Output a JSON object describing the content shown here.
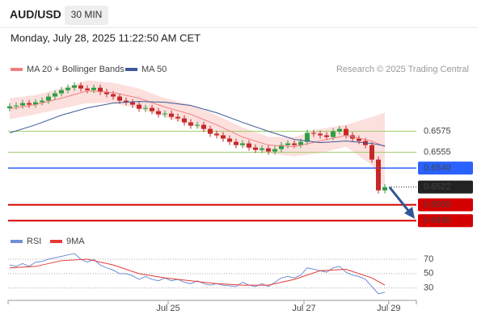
{
  "header": {
    "symbol": "AUD/USD",
    "interval": "30 MIN",
    "timestamp": "Monday, July 28, 2025 11:22:50 AM CET"
  },
  "chart_data": [
    {
      "type": "candlestick",
      "attribution": "Research © 2025 Trading Central",
      "xlim": [
        -0.25,
        63.125
      ],
      "ylim": [
        0.6484,
        0.6627
      ],
      "up_color": "#2e9e44",
      "down_color": "#c62828",
      "open": [
        0.6597,
        0.65988,
        0.65996,
        0.66019,
        0.66004,
        0.66027,
        0.66042,
        0.66081,
        0.66112,
        0.66142,
        0.66165,
        0.66188,
        0.66158,
        0.66142,
        0.66165,
        0.66127,
        0.66104,
        0.66081,
        0.66042,
        0.66027,
        0.66004,
        0.65965,
        0.65973,
        0.65942,
        0.65912,
        0.65919,
        0.65888,
        0.65873,
        0.65835,
        0.65804,
        0.65812,
        0.65773,
        0.65727,
        0.65712,
        0.65681,
        0.6565,
        0.65619,
        0.65635,
        0.65596,
        0.65573,
        0.65588,
        0.65558,
        0.65581,
        0.65619,
        0.65635,
        0.65619,
        0.6565,
        0.65735,
        0.65727,
        0.65712,
        0.65696,
        0.6575,
        0.65773,
        0.65712,
        0.65681,
        0.65658,
        0.65619,
        0.65481,
        0.65188
      ],
      "high": [
        0.66018,
        0.66026,
        0.66049,
        0.66049,
        0.66057,
        0.66072,
        0.66111,
        0.66142,
        0.66172,
        0.66195,
        0.66218,
        0.66218,
        0.66188,
        0.66195,
        0.66195,
        0.66157,
        0.66134,
        0.66111,
        0.66072,
        0.66057,
        0.66034,
        0.66003,
        0.66003,
        0.65972,
        0.65949,
        0.65949,
        0.65918,
        0.65903,
        0.65865,
        0.65842,
        0.65842,
        0.65803,
        0.65757,
        0.65742,
        0.65711,
        0.6568,
        0.65665,
        0.65665,
        0.65626,
        0.65618,
        0.65618,
        0.65611,
        0.65649,
        0.65665,
        0.65665,
        0.6568,
        0.65765,
        0.65765,
        0.65757,
        0.65742,
        0.6578,
        0.65803,
        0.65803,
        0.65742,
        0.65711,
        0.65688,
        0.65649,
        0.65511,
        0.65249
      ],
      "low": [
        0.6594,
        0.65958,
        0.65966,
        0.65974,
        0.65974,
        0.65997,
        0.66012,
        0.66051,
        0.66082,
        0.66112,
        0.66135,
        0.66128,
        0.66112,
        0.66112,
        0.66097,
        0.66074,
        0.66051,
        0.66012,
        0.65997,
        0.65974,
        0.65935,
        0.65935,
        0.65912,
        0.65882,
        0.65882,
        0.65858,
        0.65843,
        0.65805,
        0.65774,
        0.65774,
        0.65743,
        0.65697,
        0.65682,
        0.65651,
        0.6562,
        0.65589,
        0.65589,
        0.65566,
        0.65543,
        0.65543,
        0.65528,
        0.65528,
        0.65551,
        0.65589,
        0.65589,
        0.65589,
        0.6562,
        0.65697,
        0.65682,
        0.65666,
        0.65666,
        0.6572,
        0.65682,
        0.65651,
        0.65628,
        0.65589,
        0.65451,
        0.65158,
        0.65158
      ],
      "close": [
        0.65988,
        0.65996,
        0.66019,
        0.66004,
        0.66027,
        0.66042,
        0.66081,
        0.66112,
        0.66142,
        0.66165,
        0.66188,
        0.66158,
        0.66142,
        0.66165,
        0.66127,
        0.66104,
        0.66081,
        0.66042,
        0.66027,
        0.66004,
        0.65965,
        0.65973,
        0.65942,
        0.65912,
        0.65919,
        0.65888,
        0.65873,
        0.65835,
        0.65804,
        0.65812,
        0.65773,
        0.65727,
        0.65712,
        0.65681,
        0.6565,
        0.65619,
        0.65635,
        0.65596,
        0.65573,
        0.65588,
        0.65558,
        0.65581,
        0.65619,
        0.65635,
        0.65619,
        0.6565,
        0.65735,
        0.65727,
        0.65712,
        0.65696,
        0.6575,
        0.65773,
        0.65712,
        0.65681,
        0.65658,
        0.65619,
        0.65481,
        0.65188,
        0.65219
      ],
      "series_x": [
        0,
        4,
        8,
        12,
        16,
        20,
        24,
        28,
        32,
        36,
        40,
        44,
        48,
        52,
        56,
        58
      ],
      "series": [
        {
          "name": "MA 20 + Bollinger Bands",
          "color": "#f08080",
          "band_color": "#fbd5d3",
          "values": [
            0.65965,
            0.66004,
            0.66065,
            0.66135,
            0.66119,
            0.66065,
            0.65981,
            0.65912,
            0.65812,
            0.65696,
            0.65619,
            0.65604,
            0.65658,
            0.65712,
            0.65658,
            0.65604
          ],
          "upper": [
            0.66065,
            0.66096,
            0.66158,
            0.66235,
            0.66212,
            0.66158,
            0.66065,
            0.66004,
            0.65904,
            0.65788,
            0.65696,
            0.65696,
            0.65773,
            0.65812,
            0.65888,
            0.65927
          ],
          "lower": [
            0.65865,
            0.65912,
            0.65965,
            0.66019,
            0.66019,
            0.65965,
            0.65888,
            0.65812,
            0.65712,
            0.65604,
            0.65542,
            0.65512,
            0.65542,
            0.65604,
            0.65427,
            0.65196
          ]
        },
        {
          "name": "MA 50",
          "color": "#3d5a99",
          "values": [
            0.65735,
            0.65812,
            0.65904,
            0.65973,
            0.66019,
            0.66035,
            0.66027,
            0.65996,
            0.65927,
            0.65835,
            0.6575,
            0.65673,
            0.65642,
            0.65658,
            0.65635,
            0.65612
          ]
        }
      ],
      "levels": [
        {
          "value": 0.6575,
          "label": "0.6575",
          "color": "#9ccc65",
          "text_color": "#5a9e2f",
          "style": "thin",
          "label_style": "text"
        },
        {
          "value": 0.6555,
          "label": "0.6555",
          "color": "#9ccc65",
          "text_color": "#5a9e2f",
          "style": "thin",
          "label_style": "text"
        },
        {
          "value": 0.654,
          "label": "0.6540",
          "color": "#2962ff",
          "text_color": "#ffffff",
          "style": "medium",
          "label_style": "box"
        },
        {
          "value": 0.6522,
          "label": "0.6522",
          "color": "#222222",
          "text_color": "#ffffff",
          "style": "dotted",
          "label_style": "box"
        },
        {
          "value": 0.6505,
          "label": "0.6505",
          "color": "#d50000",
          "text_color": "#ffffff",
          "style": "thick",
          "label_style": "box"
        },
        {
          "value": 0.649,
          "label": "0.6490",
          "color": "#d50000",
          "text_color": "#ffffff",
          "style": "thick",
          "label_style": "box"
        }
      ]
    },
    {
      "type": "line",
      "xlim": [
        -0.25,
        63.125
      ],
      "ylim": [
        15,
        88
      ],
      "yticks": [
        70,
        50,
        30
      ],
      "grid": true,
      "xticks": [
        {
          "value": 24.5,
          "label": "Jul 25"
        },
        {
          "value": 45.5,
          "label": "Jul 27"
        },
        {
          "value": 58.6,
          "label": "Jul 29"
        }
      ],
      "series": [
        {
          "name": "RSI",
          "color": "#6f8fd6",
          "values": [
            62,
            60,
            64,
            60,
            66,
            67,
            70,
            72,
            74,
            76,
            78,
            70,
            66,
            70,
            62,
            58,
            55,
            50,
            50,
            47,
            42,
            46,
            42,
            40,
            44,
            40,
            42,
            38,
            36,
            40,
            36,
            34,
            36,
            34,
            33,
            32,
            38,
            34,
            32,
            36,
            32,
            38,
            44,
            46,
            44,
            48,
            58,
            56,
            54,
            52,
            58,
            60,
            52,
            48,
            46,
            42,
            32,
            22,
            24
          ]
        },
        {
          "name": "9MA",
          "color": "#e53935",
          "x": [
            0,
            4,
            8,
            12,
            16,
            20,
            24,
            28,
            32,
            36,
            40,
            44,
            48,
            52,
            56,
            58
          ],
          "values": [
            58,
            60,
            68,
            70,
            62,
            50,
            44,
            40,
            36,
            34,
            34,
            42,
            54,
            56,
            44,
            34
          ]
        }
      ]
    }
  ]
}
